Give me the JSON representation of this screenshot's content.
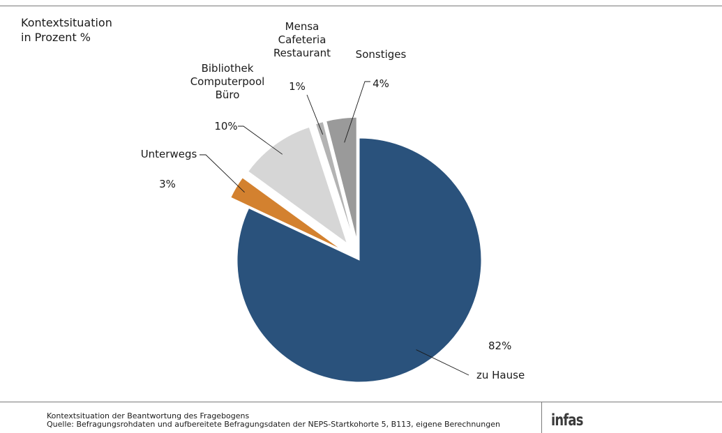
{
  "header": {
    "title_line1": "Kontextsituation",
    "title_line2": "in Prozent %"
  },
  "chart_data": {
    "type": "pie",
    "title": "Kontextsituation in Prozent %",
    "categories": [
      "zu Hause",
      "Unterwegs",
      "Bibliothek Computerpool Büro",
      "Mensa Cafeteria Restaurant",
      "Sonstiges"
    ],
    "values": [
      82,
      3,
      10,
      1,
      4
    ],
    "value_labels": [
      "82%",
      "3%",
      "10%",
      "1%",
      "4%"
    ],
    "label_lines": [
      [
        "zu Hause"
      ],
      [
        "Unterwegs"
      ],
      [
        "Bibliothek",
        "Computerpool",
        "Büro"
      ],
      [
        "Mensa",
        "Cafeteria",
        "Restaurant"
      ],
      [
        "Sonstiges"
      ]
    ],
    "colors": [
      "#2a527c",
      "#d3812f",
      "#d6d6d6",
      "#b3b3b3",
      "#9a9a9a"
    ],
    "exploded": true,
    "start": "12 o'clock",
    "direction": "clockwise",
    "legend": "none"
  },
  "footer": {
    "line1": "Kontextsituation der Beantwortung des Fragebogens",
    "line2": "Quelle: Befragungsrohdaten und aufbereitete Befragungsdaten der NEPS-Startkohorte 5, B113, eigene Berechnungen"
  },
  "logo": {
    "text": "infas"
  }
}
